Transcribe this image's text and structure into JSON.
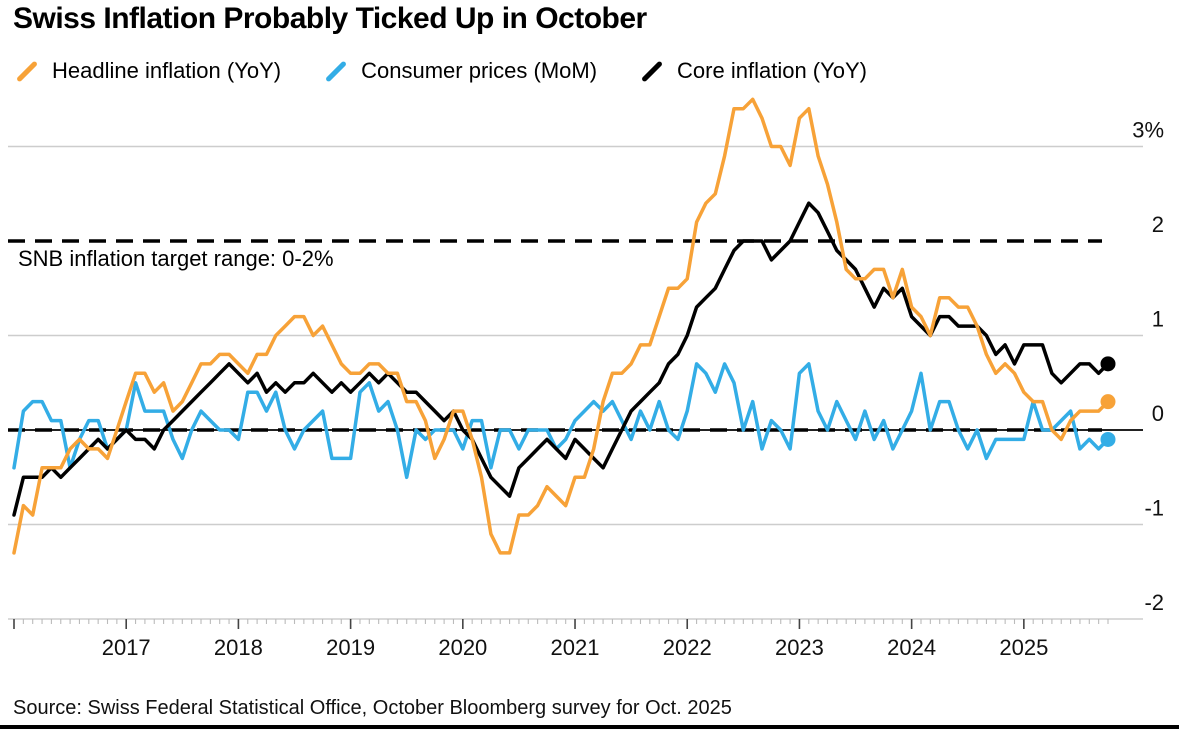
{
  "header": {
    "title": "Swiss Inflation Probably Ticked Up in October"
  },
  "legend": {
    "items": [
      {
        "label": "Headline inflation (YoY)",
        "color": "#F7A238",
        "marker": "slash-icon"
      },
      {
        "label": "Consumer prices (MoM)",
        "color": "#33ADE6",
        "marker": "slash-icon"
      },
      {
        "label": "Core inflation (YoY)",
        "color": "#000000",
        "marker": "slash-icon"
      }
    ]
  },
  "annotation": {
    "snb_target_label": "SNB inflation target range: 0-2%"
  },
  "source": {
    "text": "Source: Swiss Federal Statistical Office, October Bloomberg survey for Oct. 2025"
  },
  "colors": {
    "headline": "#F7A238",
    "consumer_mom": "#33ADE6",
    "core": "#000000",
    "gridline": "#CDCDCD",
    "zero_axis": "#222222",
    "dashed_target": "#000000",
    "axis_tick_minor": "#BBBBBB",
    "axis_tick_major": "#444444",
    "axis_label": "#111111",
    "background": "#FFFFFF"
  },
  "chart_data": {
    "type": "line",
    "x_start": "2016-01",
    "x_end": "2025-10",
    "frequency": "monthly",
    "xticks": [
      "2017",
      "2018",
      "2019",
      "2020",
      "2021",
      "2022",
      "2023",
      "2024",
      "2025"
    ],
    "yticks": [
      {
        "value": 3,
        "label": "3%"
      },
      {
        "value": 2,
        "label": "2"
      },
      {
        "value": 1,
        "label": "1"
      },
      {
        "value": 0,
        "label": "0"
      },
      {
        "value": -1,
        "label": "-1"
      },
      {
        "value": -2,
        "label": "-2"
      }
    ],
    "ylim": [
      -2,
      3.5
    ],
    "grid": "horizontal",
    "legend_position": "top-left",
    "reference_lines": [
      {
        "value": 2,
        "style": "dashed",
        "label": "SNB inflation target range: 0-2%"
      },
      {
        "value": 0,
        "style": "dashed"
      },
      {
        "value": 0,
        "style": "solid-axis"
      }
    ],
    "series": [
      {
        "name": "Headline inflation (YoY)",
        "color": "#F7A238",
        "end_dot": true,
        "values": [
          -1.3,
          -0.8,
          -0.9,
          -0.4,
          -0.4,
          -0.4,
          -0.2,
          -0.1,
          -0.2,
          -0.2,
          -0.3,
          0.0,
          0.3,
          0.6,
          0.6,
          0.4,
          0.5,
          0.2,
          0.3,
          0.5,
          0.7,
          0.7,
          0.8,
          0.8,
          0.7,
          0.6,
          0.8,
          0.8,
          1.0,
          1.1,
          1.2,
          1.2,
          1.0,
          1.1,
          0.9,
          0.7,
          0.6,
          0.6,
          0.7,
          0.7,
          0.6,
          0.6,
          0.3,
          0.3,
          0.1,
          -0.3,
          -0.1,
          0.2,
          0.2,
          -0.1,
          -0.5,
          -1.1,
          -1.3,
          -1.3,
          -0.9,
          -0.9,
          -0.8,
          -0.6,
          -0.7,
          -0.8,
          -0.5,
          -0.5,
          -0.2,
          0.3,
          0.6,
          0.6,
          0.7,
          0.9,
          0.9,
          1.2,
          1.5,
          1.5,
          1.6,
          2.2,
          2.4,
          2.5,
          2.9,
          3.4,
          3.4,
          3.5,
          3.3,
          3.0,
          3.0,
          2.8,
          3.3,
          3.4,
          2.9,
          2.6,
          2.2,
          1.7,
          1.6,
          1.6,
          1.7,
          1.7,
          1.4,
          1.7,
          1.3,
          1.2,
          1.0,
          1.4,
          1.4,
          1.3,
          1.3,
          1.1,
          0.8,
          0.6,
          0.7,
          0.6,
          0.4,
          0.3,
          0.3,
          0.0,
          -0.1,
          0.1,
          0.2,
          0.2,
          0.2,
          0.3
        ]
      },
      {
        "name": "Consumer prices (MoM)",
        "color": "#33ADE6",
        "end_dot": true,
        "values": [
          -0.4,
          0.2,
          0.3,
          0.3,
          0.1,
          0.1,
          -0.4,
          -0.1,
          0.1,
          0.1,
          -0.2,
          -0.1,
          0.0,
          0.5,
          0.2,
          0.2,
          0.2,
          -0.1,
          -0.3,
          0.0,
          0.2,
          0.1,
          0.0,
          0.0,
          -0.1,
          0.4,
          0.4,
          0.2,
          0.4,
          0.0,
          -0.2,
          0.0,
          0.1,
          0.2,
          -0.3,
          -0.3,
          -0.3,
          0.4,
          0.5,
          0.2,
          0.3,
          0.0,
          -0.5,
          0.0,
          -0.1,
          0.0,
          0.0,
          0.0,
          -0.2,
          0.1,
          0.1,
          -0.4,
          0.0,
          0.0,
          -0.2,
          0.0,
          0.0,
          0.0,
          -0.2,
          -0.1,
          0.1,
          0.2,
          0.3,
          0.2,
          0.3,
          0.1,
          -0.1,
          0.2,
          0.0,
          0.3,
          0.0,
          -0.1,
          0.2,
          0.7,
          0.6,
          0.4,
          0.7,
          0.5,
          0.0,
          0.3,
          -0.2,
          0.1,
          0.0,
          -0.2,
          0.6,
          0.7,
          0.2,
          0.0,
          0.3,
          0.1,
          -0.1,
          0.2,
          -0.1,
          0.1,
          -0.2,
          0.0,
          0.2,
          0.6,
          0.0,
          0.3,
          0.3,
          0.0,
          -0.2,
          0.0,
          -0.3,
          -0.1,
          -0.1,
          -0.1,
          -0.1,
          0.3,
          0.0,
          0.0,
          0.1,
          0.2,
          -0.2,
          -0.1,
          -0.2,
          -0.1
        ]
      },
      {
        "name": "Core inflation (YoY)",
        "color": "#000000",
        "end_dot": true,
        "values": [
          -0.9,
          -0.5,
          -0.5,
          -0.5,
          -0.4,
          -0.5,
          -0.4,
          -0.3,
          -0.2,
          -0.1,
          -0.2,
          -0.1,
          0.0,
          -0.1,
          -0.1,
          -0.2,
          0.0,
          0.1,
          0.2,
          0.3,
          0.4,
          0.5,
          0.6,
          0.7,
          0.6,
          0.5,
          0.6,
          0.4,
          0.5,
          0.4,
          0.5,
          0.5,
          0.6,
          0.5,
          0.4,
          0.5,
          0.4,
          0.5,
          0.6,
          0.5,
          0.6,
          0.5,
          0.4,
          0.4,
          0.3,
          0.2,
          0.1,
          0.2,
          0.0,
          -0.1,
          -0.3,
          -0.5,
          -0.6,
          -0.7,
          -0.4,
          -0.3,
          -0.2,
          -0.1,
          -0.2,
          -0.3,
          -0.1,
          -0.2,
          -0.3,
          -0.4,
          -0.2,
          0.0,
          0.2,
          0.3,
          0.4,
          0.5,
          0.7,
          0.8,
          1.0,
          1.3,
          1.4,
          1.5,
          1.7,
          1.9,
          2.0,
          2.0,
          2.0,
          1.8,
          1.9,
          2.0,
          2.2,
          2.4,
          2.3,
          2.1,
          1.9,
          1.8,
          1.7,
          1.5,
          1.3,
          1.5,
          1.4,
          1.5,
          1.2,
          1.1,
          1.0,
          1.2,
          1.2,
          1.1,
          1.1,
          1.1,
          1.0,
          0.8,
          0.9,
          0.7,
          0.9,
          0.9,
          0.9,
          0.6,
          0.5,
          0.6,
          0.7,
          0.7,
          0.6,
          0.7
        ]
      }
    ]
  }
}
